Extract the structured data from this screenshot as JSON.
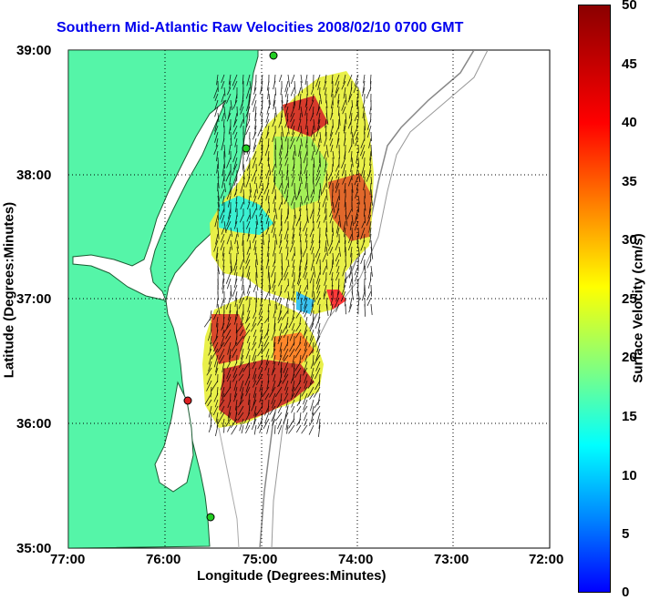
{
  "title": "Southern Mid-Atlantic Raw Velocities 2008/02/10 0700 GMT",
  "map": {
    "x_axis": {
      "label": "Longitude (Degrees:Minutes)",
      "ticks": [
        "77:00",
        "76:00",
        "75:00",
        "74:00",
        "73:00",
        "72:00"
      ]
    },
    "y_axis": {
      "label": "Latitude (Degrees:Minutes)",
      "ticks": [
        "39:00",
        "38:00",
        "37:00",
        "36:00",
        "35:00"
      ]
    },
    "grid": "dotted",
    "land_color": "#55f5a8",
    "station_color": "#22cc22",
    "station_highlight_color": "#dd2222"
  },
  "colorbar": {
    "label": "Surface Velocity (cm/s)",
    "ticks": [
      "50",
      "45",
      "40",
      "35",
      "30",
      "25",
      "20",
      "15",
      "10",
      "5",
      "0"
    ],
    "min": 0,
    "max": 50
  }
}
